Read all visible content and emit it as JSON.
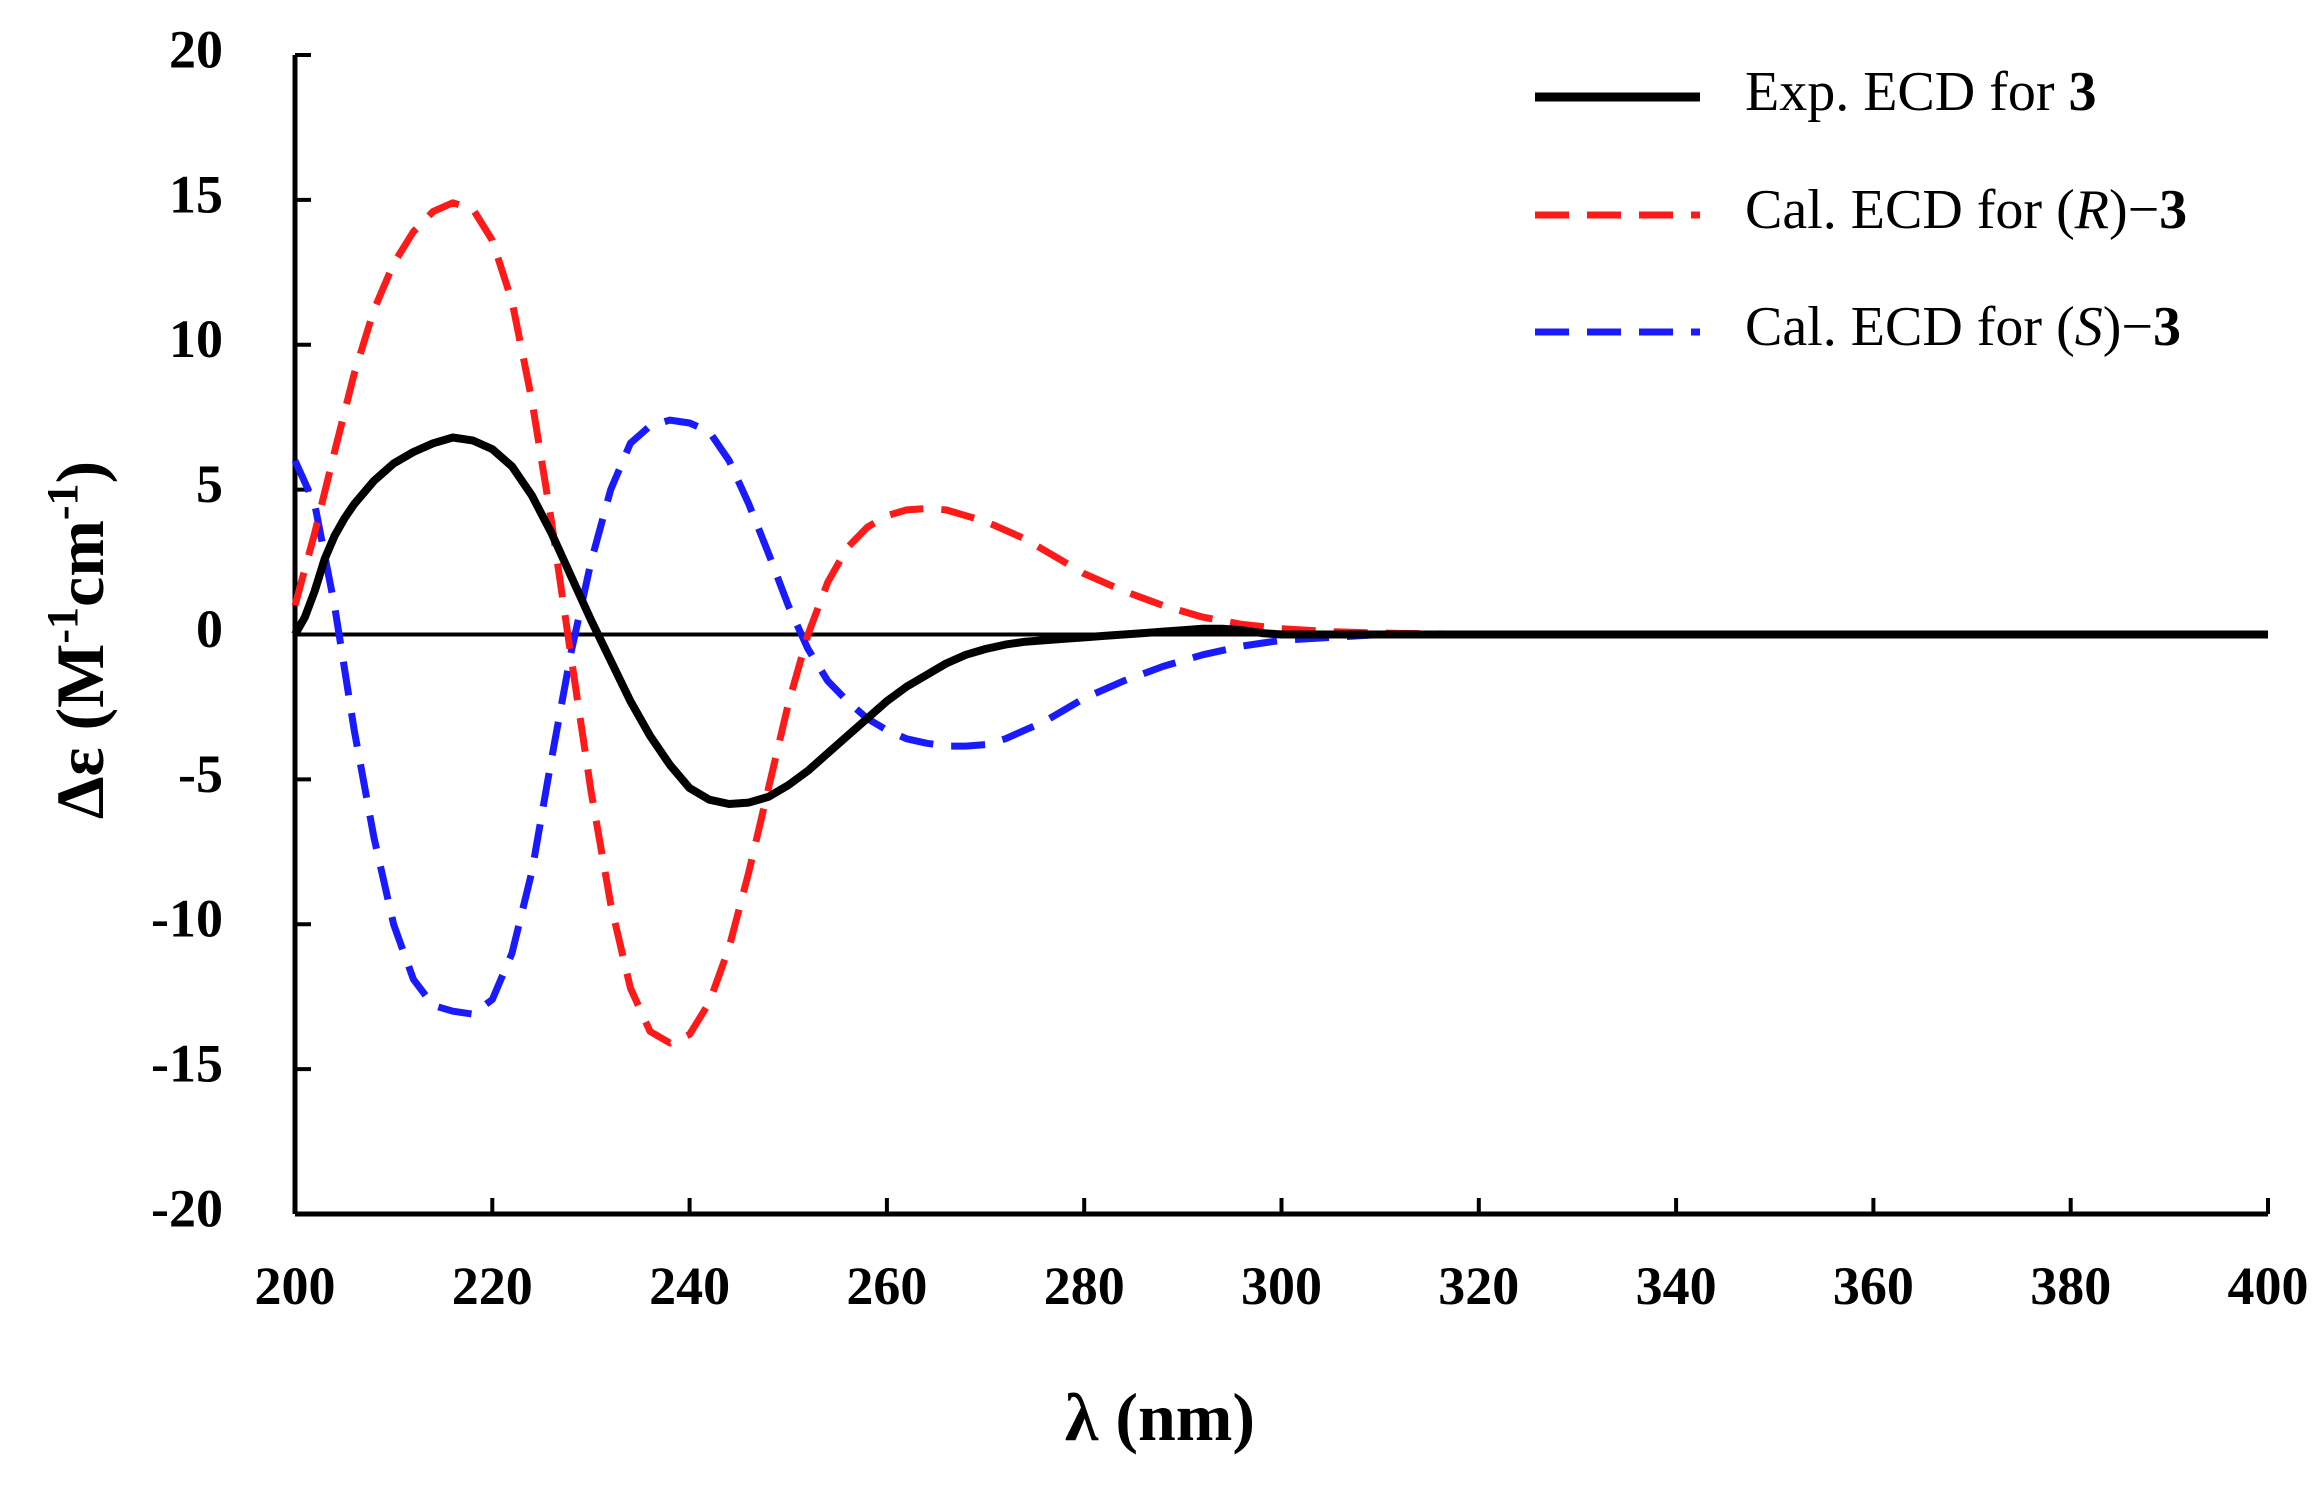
{
  "chart_data": {
    "type": "line",
    "title": "",
    "xlabel": "λ (nm)",
    "ylabel": {
      "prefix": "Δε (M",
      "sup1": "-1",
      "mid": "cm",
      "sup2": "-1",
      "suffix": ")"
    },
    "xlim": [
      200,
      400
    ],
    "ylim": [
      -20,
      20
    ],
    "x_ticks": [
      200,
      220,
      240,
      260,
      280,
      300,
      320,
      340,
      360,
      380,
      400
    ],
    "y_ticks": [
      20,
      15,
      10,
      5,
      0,
      -5,
      -10,
      -15,
      -20
    ],
    "grid": false,
    "legend_position": "top-right",
    "zero_line": true,
    "series": [
      {
        "name": "Exp. ECD for 3",
        "legend": {
          "plain": "Exp. ECD for ",
          "bold": "3"
        },
        "color": "#000000",
        "style": "solid",
        "x": [
          200,
          201,
          202,
          203,
          204,
          205,
          206,
          208,
          210,
          212,
          214,
          216,
          218,
          220,
          222,
          224,
          226,
          228,
          230,
          232,
          234,
          236,
          238,
          240,
          242,
          244,
          246,
          248,
          250,
          252,
          254,
          256,
          258,
          260,
          262,
          264,
          266,
          268,
          270,
          272,
          274,
          276,
          278,
          280,
          282,
          284,
          286,
          288,
          290,
          292,
          294,
          296,
          298,
          300,
          310,
          320,
          340,
          360,
          380,
          400
        ],
        "y": [
          0,
          0.6,
          1.5,
          2.6,
          3.4,
          4.0,
          4.5,
          5.3,
          5.9,
          6.3,
          6.6,
          6.8,
          6.7,
          6.4,
          5.8,
          4.8,
          3.5,
          2.0,
          0.5,
          -0.9,
          -2.3,
          -3.5,
          -4.5,
          -5.3,
          -5.7,
          -5.85,
          -5.8,
          -5.6,
          -5.2,
          -4.7,
          -4.1,
          -3.5,
          -2.9,
          -2.3,
          -1.8,
          -1.4,
          -1.0,
          -0.7,
          -0.5,
          -0.35,
          -0.25,
          -0.2,
          -0.15,
          -0.1,
          -0.05,
          0.0,
          0.05,
          0.1,
          0.15,
          0.2,
          0.2,
          0.15,
          0.05,
          0,
          0,
          0,
          0,
          0,
          0,
          0
        ]
      },
      {
        "name": "Cal. ECD for (R)−3",
        "legend": {
          "plain": "Cal. ECD for (",
          "ital": "R",
          "plain2": ")−",
          "bold": "3"
        },
        "color": "#ff1a1a",
        "style": "dashed",
        "x": [
          200,
          202,
          204,
          206,
          208,
          210,
          212,
          214,
          216,
          218,
          220,
          222,
          224,
          226,
          228,
          230,
          232,
          234,
          236,
          238,
          240,
          242,
          244,
          246,
          248,
          250,
          252,
          254,
          256,
          258,
          260,
          262,
          264,
          266,
          268,
          270,
          272,
          274,
          276,
          278,
          280,
          284,
          288,
          292,
          296,
          300,
          305,
          310,
          320,
          340,
          360,
          380,
          400
        ],
        "y": [
          1.0,
          3.5,
          6.3,
          9.0,
          11.2,
          12.8,
          13.9,
          14.6,
          14.9,
          14.7,
          13.6,
          11.5,
          8.1,
          3.9,
          -0.8,
          -5.4,
          -9.3,
          -12.2,
          -13.7,
          -14.1,
          -13.8,
          -12.7,
          -10.8,
          -8.2,
          -5.3,
          -2.4,
          0,
          1.8,
          3.0,
          3.7,
          4.1,
          4.3,
          4.35,
          4.3,
          4.1,
          3.9,
          3.6,
          3.3,
          2.9,
          2.5,
          2.1,
          1.5,
          1.0,
          0.6,
          0.35,
          0.2,
          0.1,
          0.05,
          0,
          0,
          0,
          0,
          0
        ]
      },
      {
        "name": "Cal. ECD for (S)−3",
        "legend": {
          "plain": "Cal. ECD for (",
          "ital": "S",
          "plain2": ")−",
          "bold": "3"
        },
        "color": "#1a1aff",
        "style": "dashed",
        "x": [
          200,
          202,
          204,
          206,
          208,
          210,
          212,
          214,
          216,
          218,
          220,
          222,
          224,
          226,
          228,
          230,
          232,
          234,
          236,
          238,
          240,
          242,
          244,
          246,
          248,
          250,
          252,
          254,
          256,
          258,
          260,
          262,
          264,
          266,
          268,
          270,
          272,
          274,
          276,
          278,
          280,
          284,
          288,
          292,
          296,
          300,
          305,
          310,
          320,
          340,
          360,
          380,
          400
        ],
        "y": [
          6.0,
          4.5,
          1.0,
          -3.3,
          -7.0,
          -10.0,
          -11.9,
          -12.8,
          -13.0,
          -13.1,
          -12.6,
          -11.0,
          -8.2,
          -4.3,
          -0.6,
          2.5,
          5.0,
          6.6,
          7.2,
          7.4,
          7.3,
          7.0,
          6.0,
          4.5,
          2.8,
          1.0,
          -0.5,
          -1.6,
          -2.3,
          -2.9,
          -3.3,
          -3.6,
          -3.75,
          -3.85,
          -3.85,
          -3.8,
          -3.6,
          -3.3,
          -3.0,
          -2.6,
          -2.2,
          -1.6,
          -1.1,
          -0.7,
          -0.4,
          -0.2,
          -0.1,
          0,
          0,
          0,
          0,
          0,
          0
        ]
      }
    ]
  }
}
